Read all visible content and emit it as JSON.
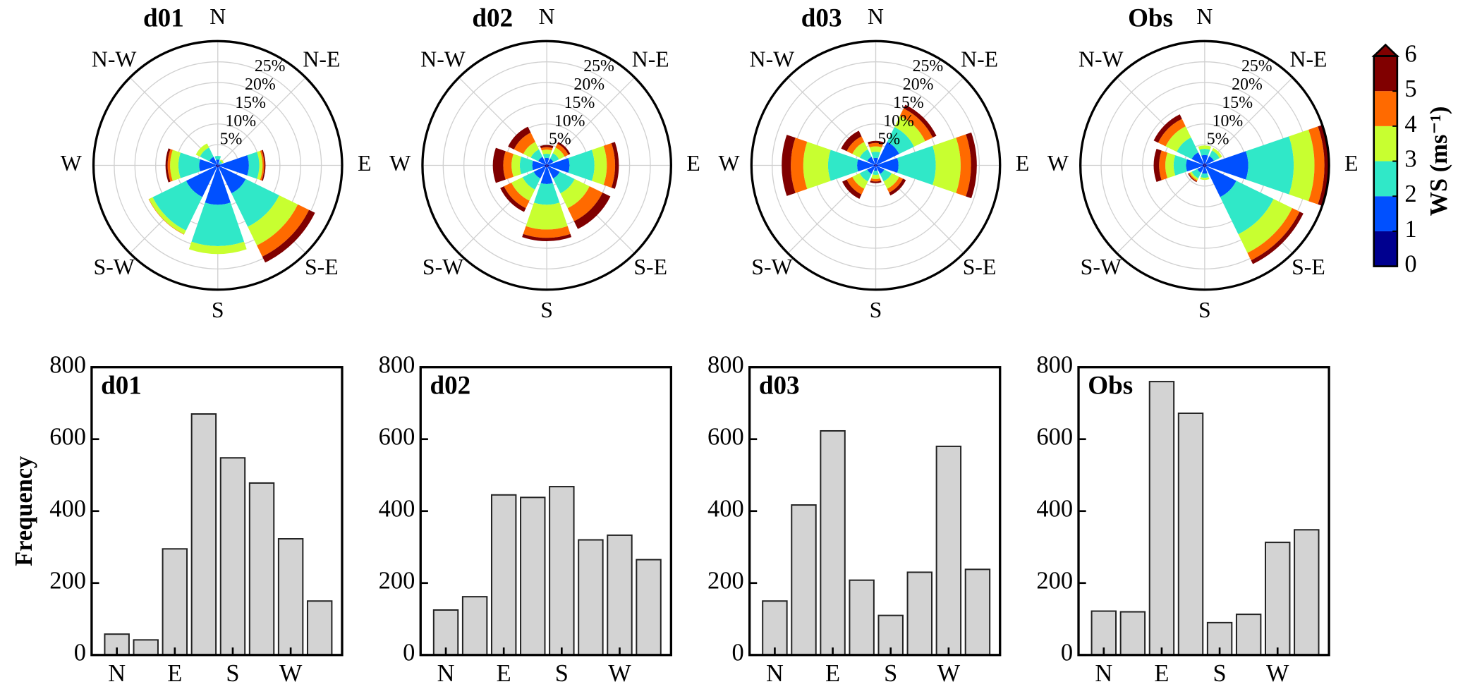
{
  "chart_data": [
    {
      "type": "windrose",
      "title": "d01",
      "directions": [
        "N",
        "N-E",
        "E",
        "S-E",
        "S",
        "S-W",
        "W",
        "N-W"
      ],
      "values": [
        [
          0.2,
          1.2,
          0.9,
          0,
          0,
          0
        ],
        [
          0.1,
          0.5,
          0.6,
          0.4,
          0,
          0
        ],
        [
          0.5,
          7,
          2.5,
          0.8,
          0.4,
          0.3
        ],
        [
          0.5,
          7,
          9,
          5,
          3,
          1.6
        ],
        [
          0.5,
          9,
          10,
          1.9,
          0,
          0
        ],
        [
          0.5,
          8,
          9,
          1,
          0.1,
          0
        ],
        [
          0.5,
          4,
          5,
          2,
          0.6,
          0.5
        ],
        [
          0.3,
          2,
          2.5,
          1.1,
          0,
          0
        ]
      ],
      "rlim": [
        0,
        30
      ],
      "rticks": [
        {
          "value": 5,
          "label": "5%"
        },
        {
          "value": 10,
          "label": "10%"
        },
        {
          "value": 15,
          "label": "15%"
        },
        {
          "value": 20,
          "label": "20%"
        },
        {
          "value": 25,
          "label": "25%"
        }
      ]
    },
    {
      "type": "windrose",
      "title": "d02",
      "directions": [
        "N",
        "N-E",
        "E",
        "S-E",
        "S",
        "S-W",
        "W",
        "N-W"
      ],
      "values": [
        [
          0.3,
          1.5,
          1,
          1,
          0.6,
          0.5
        ],
        [
          0.3,
          1.5,
          1.5,
          1.5,
          1,
          0.5
        ],
        [
          0.5,
          5,
          6,
          3,
          2,
          0.9
        ],
        [
          0.5,
          3,
          4,
          4,
          3.5,
          2.1
        ],
        [
          0.5,
          4,
          5,
          6,
          2,
          0.8
        ],
        [
          0.5,
          3,
          3,
          3,
          2,
          1
        ],
        [
          0.5,
          3,
          3,
          2,
          2,
          2.5
        ],
        [
          0.3,
          2,
          2,
          2,
          2.5,
          1.6
        ]
      ],
      "rlim": [
        0,
        30
      ],
      "rticks": [
        {
          "value": 5,
          "label": "5%"
        },
        {
          "value": 10,
          "label": "10%"
        },
        {
          "value": 15,
          "label": "15%"
        },
        {
          "value": 20,
          "label": "20%"
        },
        {
          "value": 25,
          "label": "25%"
        }
      ]
    },
    {
      "type": "windrose",
      "title": "d03",
      "directions": [
        "N",
        "N-E",
        "E",
        "S-E",
        "S",
        "S-W",
        "W",
        "N-W"
      ],
      "values": [
        [
          0.3,
          1.5,
          1.5,
          1.3,
          0.8,
          0.5
        ],
        [
          0.3,
          6,
          4,
          3,
          2,
          1
        ],
        [
          0.5,
          5,
          9,
          6,
          2.5,
          1.4
        ],
        [
          0.3,
          2,
          2,
          2,
          1,
          0.8
        ],
        [
          0.3,
          1,
          1,
          1,
          0.6,
          0.4
        ],
        [
          0.3,
          2,
          2,
          2,
          1.5,
          1.2
        ],
        [
          0.5,
          4,
          7,
          6,
          3,
          2.2
        ],
        [
          0.3,
          2,
          2,
          2,
          1.5,
          1.5
        ]
      ],
      "rlim": [
        0,
        30
      ],
      "rticks": [
        {
          "value": 5,
          "label": "5%"
        },
        {
          "value": 10,
          "label": "10%"
        },
        {
          "value": 15,
          "label": "15%"
        },
        {
          "value": 20,
          "label": "20%"
        },
        {
          "value": 25,
          "label": "25%"
        }
      ]
    },
    {
      "type": "windrose",
      "title": "Obs",
      "directions": [
        "N",
        "N-E",
        "E",
        "S-E",
        "S",
        "S-W",
        "W",
        "N-W"
      ],
      "values": [
        [
          0.5,
          2,
          1.5,
          0.8,
          0,
          0
        ],
        [
          0.5,
          2,
          1.5,
          0.7,
          0,
          0
        ],
        [
          0.5,
          10,
          11,
          5,
          2.4,
          1
        ],
        [
          0.5,
          8,
          10,
          5,
          2,
          1
        ],
        [
          0.5,
          1.5,
          1,
          0.5,
          0,
          0
        ],
        [
          0.5,
          1.5,
          1.5,
          0.5,
          0.3,
          0.2
        ],
        [
          0.5,
          4,
          3,
          2,
          1.5,
          1.3
        ],
        [
          0.5,
          3,
          4,
          3,
          2,
          1.2
        ]
      ],
      "rlim": [
        0,
        30
      ],
      "rticks": [
        {
          "value": 5,
          "label": "5%"
        },
        {
          "value": 10,
          "label": "10%"
        },
        {
          "value": 15,
          "label": "15%"
        },
        {
          "value": 20,
          "label": "20%"
        },
        {
          "value": 25,
          "label": "25%"
        }
      ]
    },
    {
      "type": "colorbar",
      "label": "WS (ms⁻¹)",
      "lim": [
        0,
        6
      ],
      "ticks": [
        0,
        1,
        2,
        3,
        4,
        5,
        6
      ],
      "colors": [
        "#00008f",
        "#0050ff",
        "#30e8c8",
        "#c8ff30",
        "#ff6a00",
        "#800000"
      ]
    },
    {
      "type": "bar",
      "title": "d01",
      "ylabel": "Frequency",
      "categories": [
        "N",
        null,
        "E",
        null,
        "S",
        null,
        "W",
        null
      ],
      "values": [
        58,
        42,
        295,
        670,
        548,
        478,
        323,
        150
      ],
      "color": "#d3d3d3",
      "ylim": [
        0,
        800
      ],
      "yticks": [
        0,
        200,
        400,
        600,
        800
      ]
    },
    {
      "type": "bar",
      "title": "d02",
      "categories": [
        "N",
        null,
        "E",
        null,
        "S",
        null,
        "W",
        null
      ],
      "values": [
        125,
        162,
        445,
        438,
        468,
        320,
        333,
        265
      ],
      "color": "#d3d3d3",
      "ylim": [
        0,
        800
      ],
      "yticks": [
        0,
        200,
        400,
        600,
        800
      ]
    },
    {
      "type": "bar",
      "title": "d03",
      "categories": [
        "N",
        null,
        "E",
        null,
        "S",
        null,
        "W",
        null
      ],
      "values": [
        150,
        417,
        623,
        208,
        110,
        230,
        580,
        238
      ],
      "color": "#d3d3d3",
      "ylim": [
        0,
        800
      ],
      "yticks": [
        0,
        200,
        400,
        600,
        800
      ]
    },
    {
      "type": "bar",
      "title": "Obs",
      "categories": [
        "N",
        null,
        "E",
        null,
        "S",
        null,
        "W",
        null
      ],
      "values": [
        122,
        120,
        760,
        672,
        90,
        113,
        313,
        348
      ],
      "color": "#d3d3d3",
      "ylim": [
        0,
        800
      ],
      "yticks": [
        0,
        200,
        400,
        600,
        800
      ]
    }
  ]
}
